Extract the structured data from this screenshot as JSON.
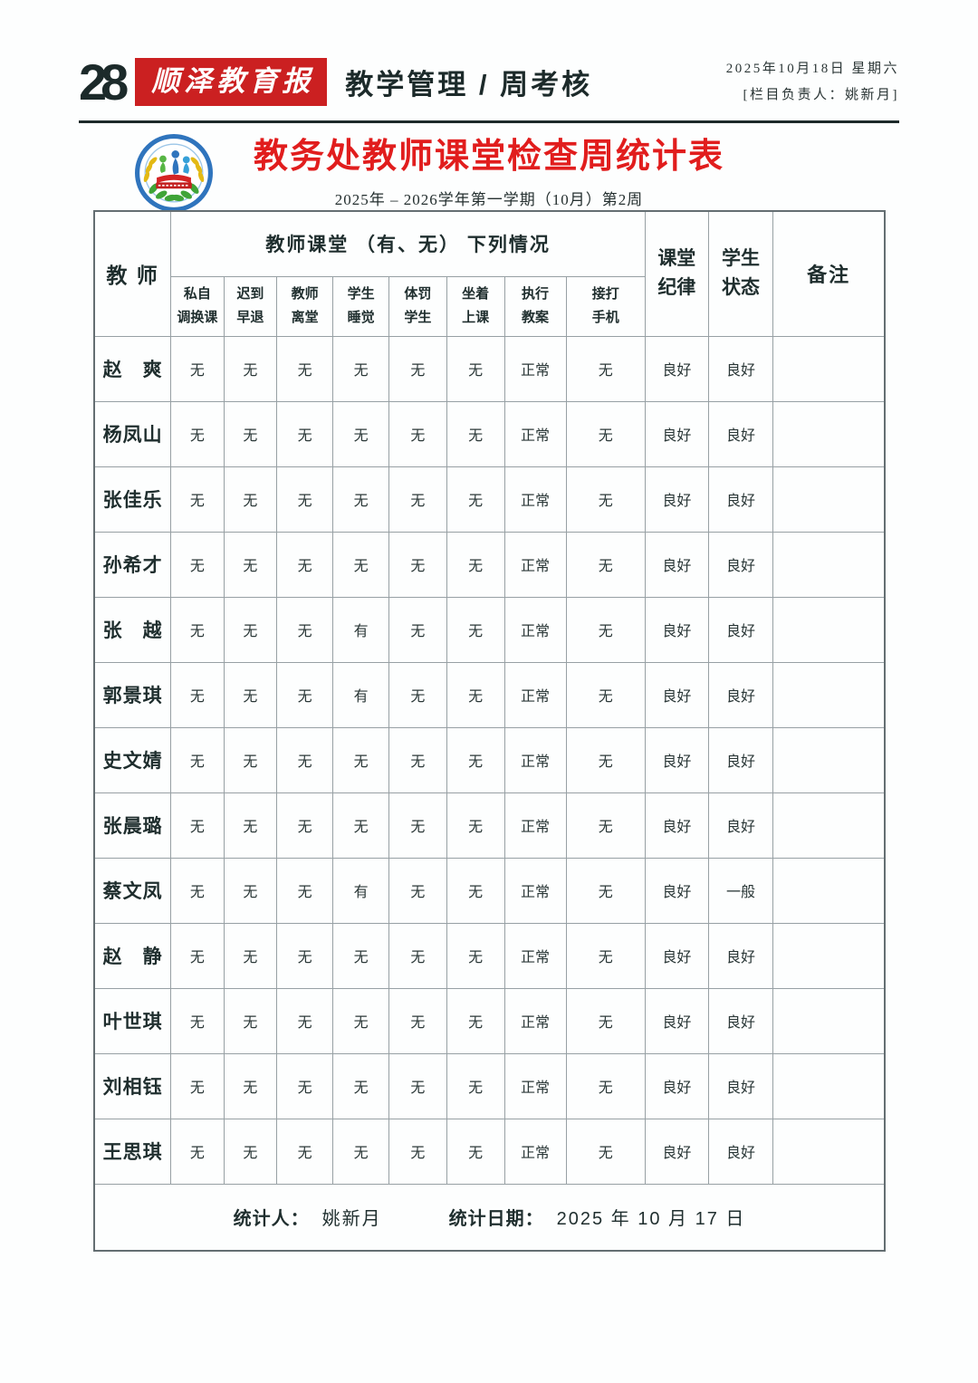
{
  "colors": {
    "brand_red": "#cb2021",
    "title_red": "#e11d1d",
    "ink": "#1f2e2e",
    "table_border": "#97a0a4"
  },
  "page": {
    "page_number": "28",
    "masthead": "顺泽教育报",
    "section_title": "教学管理 / 周考核",
    "date_line": "2025年10月18日 星期六",
    "editor_line": "[栏目负责人：姚新月]"
  },
  "doc": {
    "logo_icon": "school-badge-icon",
    "title": "教务处教师课堂检查周统计表",
    "subtitle": "2025年 – 2026学年第一学期（10月）第2周"
  },
  "table": {
    "header": {
      "teacher": "教 师",
      "group": "教师课堂 （有、无） 下列情况",
      "sub_columns": [
        "私自\n调换课",
        "迟到\n早退",
        "教师\n离堂",
        "学生\n睡觉",
        "体罚\n学生",
        "坐着\n上课",
        "执行\n教案",
        "接打\n手机"
      ],
      "discipline": "课堂\n纪律",
      "student_state": "学生\n状态",
      "remark": "备注"
    },
    "rows": [
      {
        "name": "赵　爽",
        "values": [
          "无",
          "无",
          "无",
          "无",
          "无",
          "无",
          "正常",
          "无",
          "良好",
          "良好"
        ],
        "remark": ""
      },
      {
        "name": "杨凤山",
        "values": [
          "无",
          "无",
          "无",
          "无",
          "无",
          "无",
          "正常",
          "无",
          "良好",
          "良好"
        ],
        "remark": ""
      },
      {
        "name": "张佳乐",
        "values": [
          "无",
          "无",
          "无",
          "无",
          "无",
          "无",
          "正常",
          "无",
          "良好",
          "良好"
        ],
        "remark": ""
      },
      {
        "name": "孙希才",
        "values": [
          "无",
          "无",
          "无",
          "无",
          "无",
          "无",
          "正常",
          "无",
          "良好",
          "良好"
        ],
        "remark": ""
      },
      {
        "name": "张　越",
        "values": [
          "无",
          "无",
          "无",
          "有",
          "无",
          "无",
          "正常",
          "无",
          "良好",
          "良好"
        ],
        "remark": ""
      },
      {
        "name": "郭景琪",
        "values": [
          "无",
          "无",
          "无",
          "有",
          "无",
          "无",
          "正常",
          "无",
          "良好",
          "良好"
        ],
        "remark": ""
      },
      {
        "name": "史文婧",
        "values": [
          "无",
          "无",
          "无",
          "无",
          "无",
          "无",
          "正常",
          "无",
          "良好",
          "良好"
        ],
        "remark": ""
      },
      {
        "name": "张晨璐",
        "values": [
          "无",
          "无",
          "无",
          "无",
          "无",
          "无",
          "正常",
          "无",
          "良好",
          "良好"
        ],
        "remark": ""
      },
      {
        "name": "蔡文凤",
        "values": [
          "无",
          "无",
          "无",
          "有",
          "无",
          "无",
          "正常",
          "无",
          "良好",
          "一般"
        ],
        "remark": ""
      },
      {
        "name": "赵　静",
        "values": [
          "无",
          "无",
          "无",
          "无",
          "无",
          "无",
          "正常",
          "无",
          "良好",
          "良好"
        ],
        "remark": ""
      },
      {
        "name": "叶世琪",
        "values": [
          "无",
          "无",
          "无",
          "无",
          "无",
          "无",
          "正常",
          "无",
          "良好",
          "良好"
        ],
        "remark": ""
      },
      {
        "name": "刘相钰",
        "values": [
          "无",
          "无",
          "无",
          "无",
          "无",
          "无",
          "正常",
          "无",
          "良好",
          "良好"
        ],
        "remark": ""
      },
      {
        "name": "王思琪",
        "values": [
          "无",
          "无",
          "无",
          "无",
          "无",
          "无",
          "正常",
          "无",
          "良好",
          "良好"
        ],
        "remark": ""
      }
    ],
    "footer": {
      "stat_person_label": "统计人：",
      "stat_person": "姚新月",
      "stat_date_label": "统计日期：",
      "stat_date": "2025 年 10 月  17 日"
    }
  }
}
